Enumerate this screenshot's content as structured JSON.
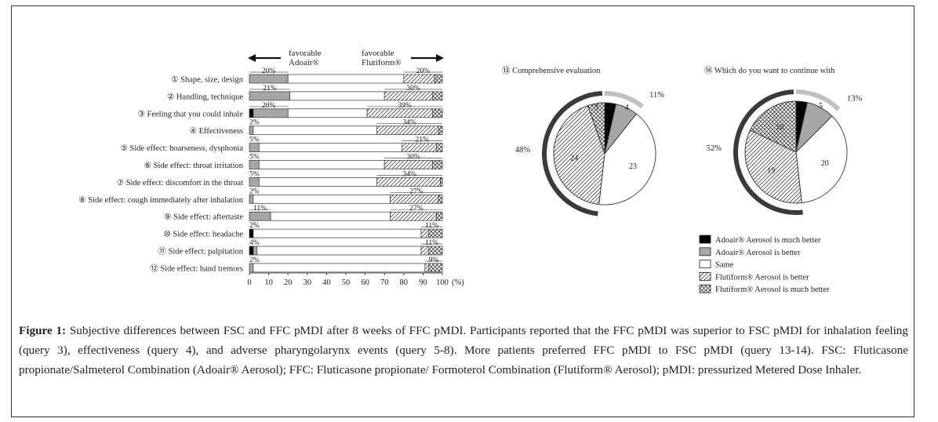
{
  "caption": {
    "label": "Figure 1:",
    "text": " Subjective differences between FSC and FFC pMDI after 8 weeks of FFC pMDI. Participants reported that the FFC pMDI was superior to FSC pMDI for inhalation feeling (query 3), effectiveness (query 4), and adverse pharyngolarynx events (query 5-8). More patients preferred FFC pMDI to FSC pMDI (query 13-14). FSC: Fluticasone propionate/Salmeterol Combination (Adoair® Aerosol); FFC: Fluticasone propionate/ Formoterol Combination (Flutiform® Aerosol); pMDI: pressurized Metered Dose Inhaler."
  },
  "headers": {
    "left_label": [
      "favorable",
      "Adoair®"
    ],
    "right_label": [
      "favorable",
      "Flutiform®"
    ]
  },
  "chart_data": [
    {
      "type": "bar",
      "orientation": "horizontal-stacked",
      "xlabel": "(%)",
      "xlim": [
        0,
        100
      ],
      "ticks": [
        "0",
        "10",
        "20",
        "30",
        "40",
        "50",
        "60",
        "70",
        "80",
        "90",
        "100"
      ],
      "series_order": [
        "adoair_much_better",
        "adoair_better",
        "same",
        "flutiform_better",
        "flutiform_much_better"
      ],
      "rows": [
        {
          "label": "① Shape, size, design",
          "values": [
            0,
            20,
            60,
            16,
            4
          ],
          "left_pct": "20%",
          "right_pct": "20%"
        },
        {
          "label": "② Handling, technique",
          "values": [
            0,
            21,
            49,
            25,
            5
          ],
          "left_pct": "21%",
          "right_pct": "30%"
        },
        {
          "label": "③ Feeling that you could inhale",
          "values": [
            2,
            18,
            41,
            34,
            5
          ],
          "left_pct": "20%",
          "right_pct": "39%"
        },
        {
          "label": "④ Effectiveness",
          "values": [
            0,
            2,
            64,
            32,
            2
          ],
          "left_pct": "2%",
          "right_pct": "34%"
        },
        {
          "label": "⑤ Side effect: hoarseness, dysphonia",
          "values": [
            0,
            5,
            74,
            18,
            3
          ],
          "left_pct": "5%",
          "right_pct": "21%"
        },
        {
          "label": "⑥ Side effect: throat irritation",
          "values": [
            0,
            5,
            65,
            25,
            5
          ],
          "left_pct": "5%",
          "right_pct": "30%"
        },
        {
          "label": "⑦ Side effect: discomfort in the throat",
          "values": [
            0,
            5,
            61,
            33,
            1
          ],
          "left_pct": "5%",
          "right_pct": "34%"
        },
        {
          "label": "⑧ Side effect: cough immediately after inhalation",
          "values": [
            0,
            2,
            71,
            25,
            2
          ],
          "left_pct": "2%",
          "right_pct": "27%"
        },
        {
          "label": "⑨ Side effect: aftertaste",
          "values": [
            0,
            11,
            62,
            24,
            3
          ],
          "left_pct": "11%",
          "right_pct": "27%"
        },
        {
          "label": "⑩ Side effect: headache",
          "values": [
            2,
            0,
            87,
            4,
            7
          ],
          "left_pct": "2%",
          "right_pct": "11%"
        },
        {
          "label": "⑪ Side effect: palpitation",
          "values": [
            2,
            2,
            85,
            4,
            7
          ],
          "left_pct": "4%",
          "right_pct": "11%"
        },
        {
          "label": "⑫ Side effect: hand tremors",
          "values": [
            0,
            2,
            89,
            2,
            7
          ],
          "left_pct": "2%",
          "right_pct": "9%"
        }
      ]
    },
    {
      "type": "pie",
      "title": "⑬ Comprehensive evaluation",
      "slices": [
        {
          "key": "adoair_much_better",
          "value": 2
        },
        {
          "key": "adoair_better",
          "value": 4
        },
        {
          "key": "same",
          "value": 23
        },
        {
          "key": "flutiform_better",
          "value": 24
        },
        {
          "key": "flutiform_much_better",
          "value": 3
        }
      ],
      "adoair_pct": "11%",
      "flutiform_pct": "48%"
    },
    {
      "type": "pie",
      "title": "⑭ Which do you want to continue with",
      "slices": [
        {
          "key": "adoair_much_better",
          "value": 2
        },
        {
          "key": "adoair_better",
          "value": 5
        },
        {
          "key": "same",
          "value": 20
        },
        {
          "key": "flutiform_better",
          "value": 19
        },
        {
          "key": "flutiform_much_better",
          "value": 10
        }
      ],
      "adoair_pct": "13%",
      "flutiform_pct": "52%"
    }
  ],
  "legend": [
    {
      "key": "adoair_much_better",
      "text": "Adoair® Aerosol is much better"
    },
    {
      "key": "adoair_better",
      "text": "Adoair® Aerosol is better"
    },
    {
      "key": "same",
      "text": "Same"
    },
    {
      "key": "flutiform_better",
      "text": "Flutiform® Aerosol is better"
    },
    {
      "key": "flutiform_much_better",
      "text": "Flutiform® Aerosol is much better"
    }
  ],
  "colors": {
    "adoair_much_better": "#000000",
    "adoair_better": "#a6a6a6",
    "same": "#ffffff",
    "outline": "#333333",
    "arc_adoair": "#c0c0c0",
    "arc_flutiform": "#3a3a3a"
  }
}
